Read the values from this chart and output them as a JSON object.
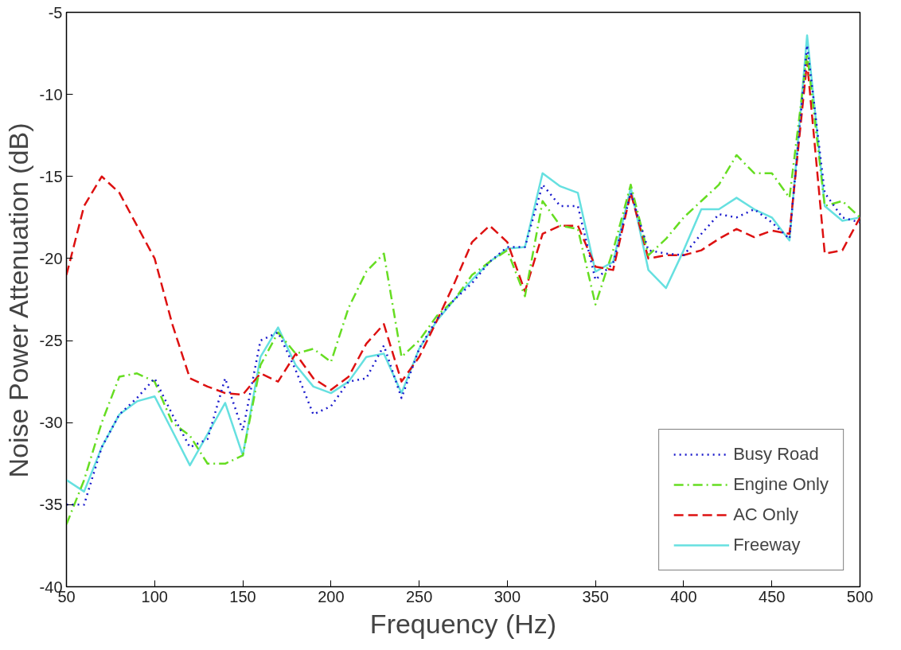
{
  "chart_data": {
    "type": "line",
    "xlabel": "Frequency (Hz)",
    "ylabel": "Noise Power Attenuation (dB)",
    "x": [
      50,
      60,
      70,
      80,
      90,
      100,
      110,
      120,
      130,
      140,
      150,
      160,
      170,
      180,
      190,
      200,
      210,
      220,
      230,
      240,
      250,
      260,
      270,
      280,
      290,
      300,
      310,
      320,
      330,
      340,
      350,
      360,
      370,
      380,
      390,
      400,
      410,
      420,
      430,
      440,
      450,
      460,
      470,
      480,
      490,
      500
    ],
    "xlim": [
      50,
      500
    ],
    "xticks": [
      50,
      100,
      150,
      200,
      250,
      300,
      350,
      400,
      450,
      500
    ],
    "ylim": [
      -40,
      -5
    ],
    "yticks": [
      -40,
      -35,
      -30,
      -25,
      -20,
      -15,
      -10,
      -5
    ],
    "grid": false,
    "legend": "bottom right",
    "marker": "none",
    "series": [
      {
        "name": "Busy Road",
        "color": "#1a1acc",
        "line_style": "dotted",
        "values": [
          -35,
          -35,
          -31.5,
          -29.5,
          -28.5,
          -27.3,
          -29.5,
          -31.5,
          -31,
          -27.3,
          -30.5,
          -25,
          -24.5,
          -26.8,
          -29.5,
          -29,
          -27.5,
          -27.3,
          -25.3,
          -28.5,
          -25.5,
          -23.7,
          -22.5,
          -21.5,
          -20.2,
          -19.3,
          -19.3,
          -15.5,
          -16.8,
          -16.8,
          -21.3,
          -20.3,
          -16,
          -19.5,
          -19.7,
          -19.8,
          -18.5,
          -17.3,
          -17.5,
          -17,
          -17.8,
          -18.8,
          -7,
          -16,
          -17.5,
          -17.8
        ]
      },
      {
        "name": "Engine Only",
        "color": "#66dd22",
        "line_style": "dashdot",
        "values": [
          -36.2,
          -33.5,
          -30,
          -27.2,
          -27,
          -27.5,
          -30,
          -30.8,
          -32.5,
          -32.5,
          -32,
          -26.5,
          -24.5,
          -25.8,
          -25.5,
          -26.3,
          -23,
          -20.8,
          -19.7,
          -26,
          -25,
          -23.5,
          -22.5,
          -21,
          -20.2,
          -19.5,
          -22.3,
          -16.5,
          -18,
          -18.2,
          -22.8,
          -19.5,
          -15.5,
          -19.8,
          -18.8,
          -17.5,
          -16.5,
          -15.5,
          -13.7,
          -14.8,
          -14.8,
          -16.3,
          -7.5,
          -16.8,
          -16.5,
          -17.5
        ]
      },
      {
        "name": "AC Only",
        "color": "#dd1111",
        "line_style": "dashed",
        "values": [
          -21,
          -16.8,
          -15,
          -16,
          -18,
          -20,
          -24,
          -27.3,
          -27.8,
          -28.2,
          -28.3,
          -27,
          -27.5,
          -25.8,
          -27.3,
          -28,
          -27.2,
          -25.2,
          -24,
          -27.5,
          -26,
          -23.8,
          -21.5,
          -19,
          -18,
          -19,
          -22,
          -18.5,
          -18,
          -18,
          -20.5,
          -20.7,
          -16,
          -20,
          -19.8,
          -19.8,
          -19.5,
          -18.8,
          -18.2,
          -18.7,
          -18.3,
          -18.5,
          -8,
          -19.7,
          -19.5,
          -17.5
        ]
      },
      {
        "name": "Freeway",
        "color": "#66e0e0",
        "line_style": "solid",
        "values": [
          -33.5,
          -34.2,
          -31.5,
          -29.5,
          -28.7,
          -28.4,
          -30.5,
          -32.6,
          -30.7,
          -28.8,
          -32,
          -26,
          -24.2,
          -26.5,
          -27.8,
          -28.2,
          -27.5,
          -26,
          -25.8,
          -28.2,
          -25.5,
          -23.8,
          -22.5,
          -21.3,
          -20.2,
          -19.4,
          -19.3,
          -14.8,
          -15.6,
          -16,
          -20.8,
          -20.2,
          -15.7,
          -20.7,
          -21.8,
          -19.5,
          -17,
          -17,
          -16.3,
          -17,
          -17.5,
          -18.9,
          -6.4,
          -16.8,
          -17.7,
          -17.5
        ]
      }
    ]
  }
}
